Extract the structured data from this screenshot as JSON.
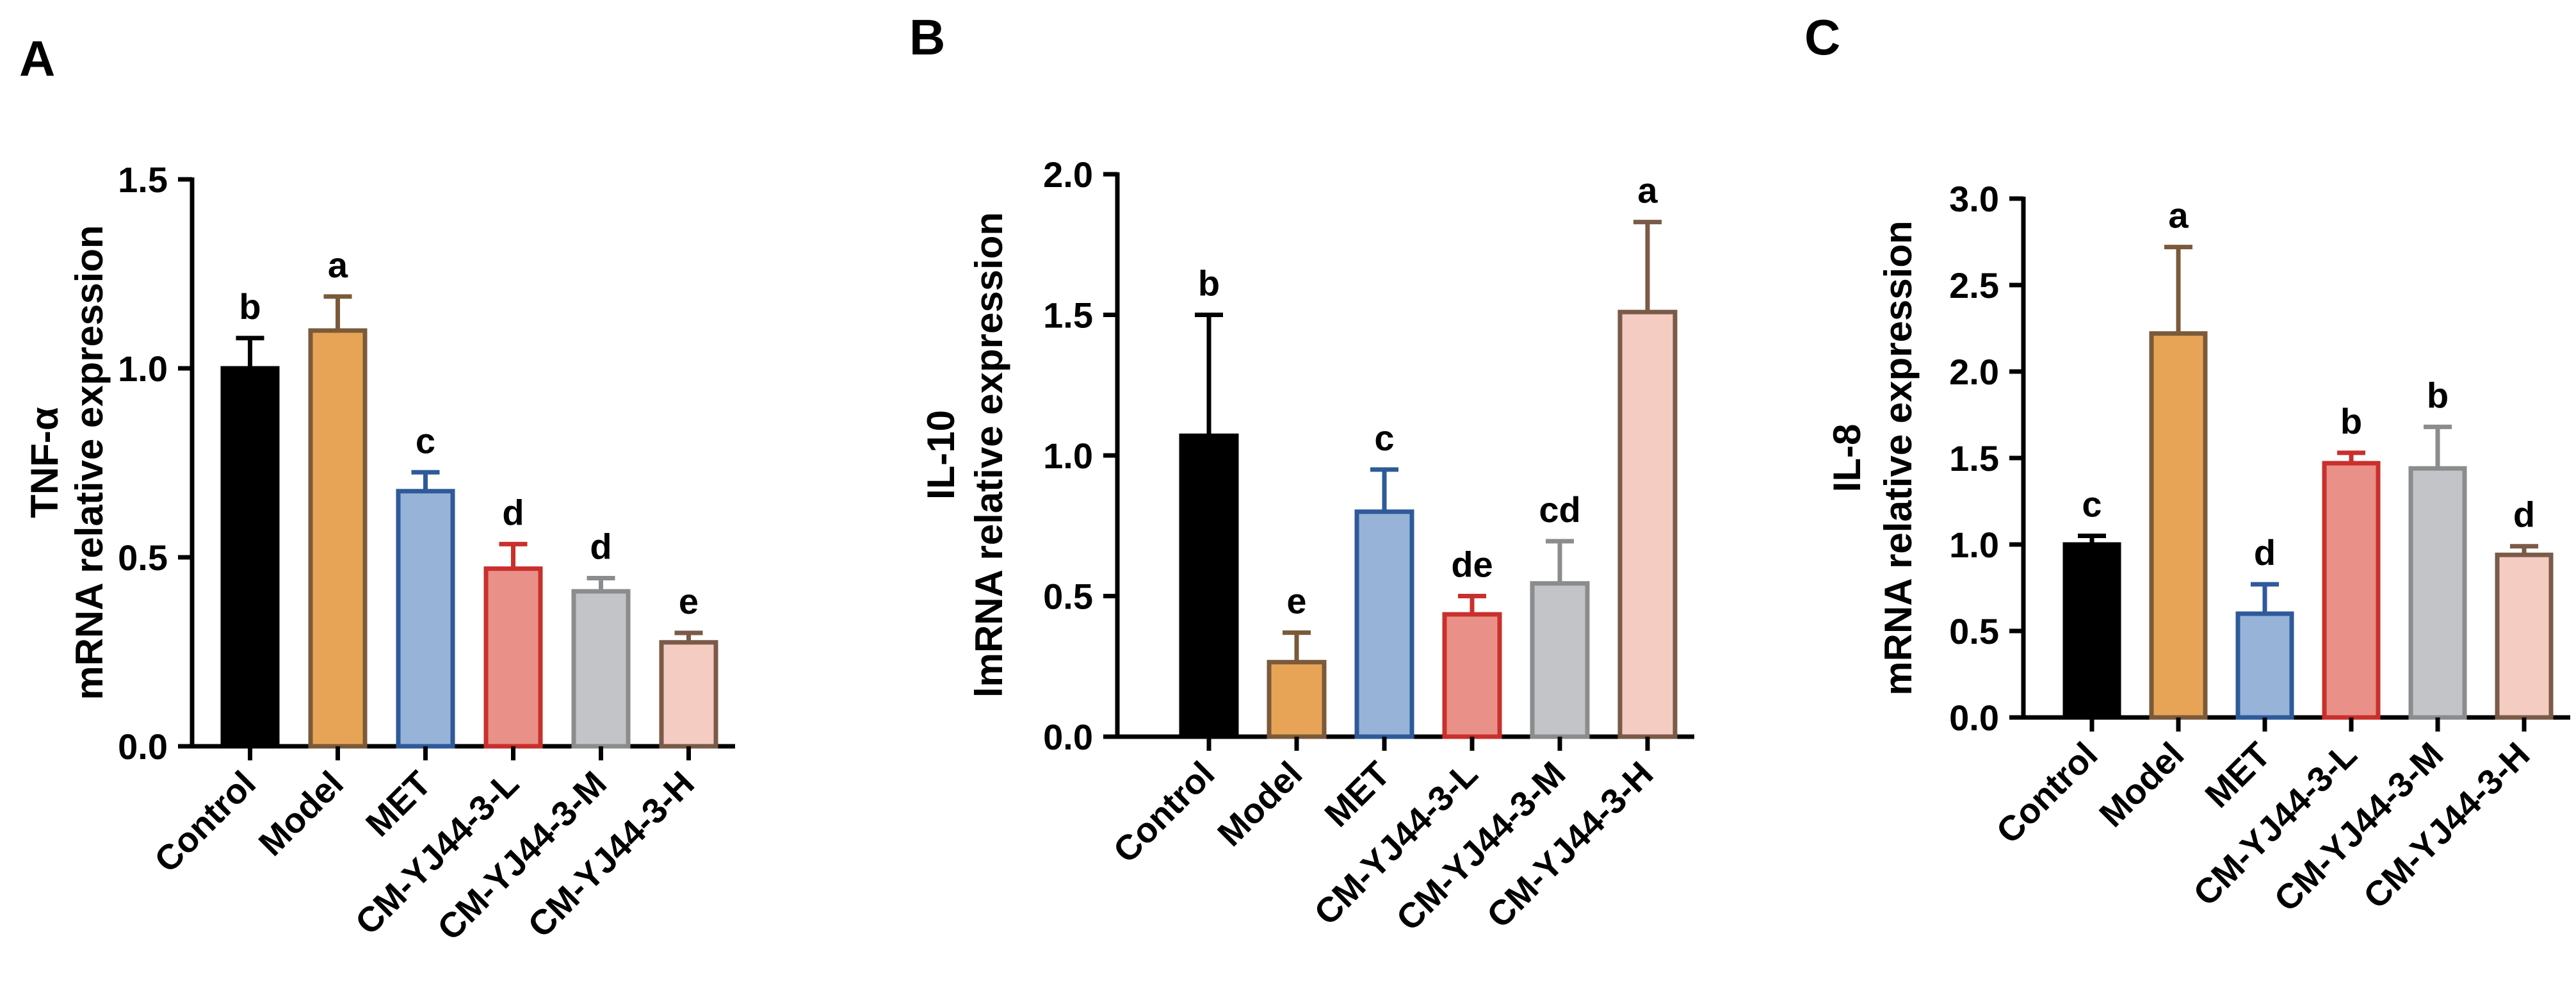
{
  "chart_data": [
    {
      "type": "bar",
      "panel": "A",
      "ylabel_line1": "TNF-α",
      "ylabel_line2": "mRNA relative expression",
      "categories": [
        "Control",
        "Model",
        "MET",
        "CM-YJ44-3-L",
        "CM-YJ44-3-M",
        "CM-YJ44-3-H"
      ],
      "values": [
        1.0,
        1.1,
        0.675,
        0.47,
        0.41,
        0.275
      ],
      "errors": [
        0.08,
        0.09,
        0.05,
        0.065,
        0.035,
        0.025
      ],
      "letters": [
        "b",
        "a",
        "c",
        "d",
        "d",
        "e"
      ],
      "ylim": [
        0,
        1.5
      ],
      "yticks": [
        0.0,
        0.5,
        1.0,
        1.5
      ],
      "ytick_labels": [
        "0.0",
        "0.5",
        "1.0",
        "1.5"
      ]
    },
    {
      "type": "bar",
      "panel": "B",
      "ylabel_line1": "IL-10",
      "ylabel_line2": "lmRNA relative expression",
      "categories": [
        "Control",
        "Model",
        "MET",
        "CM-YJ44-3-L",
        "CM-YJ44-3-M",
        "CM-YJ44-3-H"
      ],
      "values": [
        1.07,
        0.265,
        0.8,
        0.435,
        0.545,
        1.51
      ],
      "errors": [
        0.43,
        0.105,
        0.15,
        0.065,
        0.15,
        0.32
      ],
      "letters": [
        "b",
        "e",
        "c",
        "de",
        "cd",
        "a"
      ],
      "ylim": [
        0,
        2.0
      ],
      "yticks": [
        0.0,
        0.5,
        1.0,
        1.5,
        2.0
      ],
      "ytick_labels": [
        "0.0",
        "0.5",
        "1.0",
        "1.5",
        "2.0"
      ]
    },
    {
      "type": "bar",
      "panel": "C",
      "ylabel_line1": "IL-8",
      "ylabel_line2": "mRNA relative expression",
      "categories": [
        "Control",
        "Model",
        "MET",
        "CM-YJ44-3-L",
        "CM-YJ44-3-M",
        "CM-YJ44-3-H"
      ],
      "values": [
        1.0,
        2.22,
        0.6,
        1.47,
        1.44,
        0.94
      ],
      "errors": [
        0.05,
        0.5,
        0.17,
        0.06,
        0.24,
        0.05
      ],
      "letters": [
        "c",
        "a",
        "d",
        "b",
        "b",
        "d"
      ],
      "ylim": [
        0,
        3.0
      ],
      "yticks": [
        0.0,
        0.5,
        1.0,
        1.5,
        2.0,
        2.5,
        3.0
      ],
      "ytick_labels": [
        "0.0",
        "0.5",
        "1.0",
        "1.5",
        "2.0",
        "2.5",
        "3.0"
      ]
    }
  ],
  "colors": {
    "fills": [
      "#000000",
      "#E8A456",
      "#97B3D8",
      "#E99089",
      "#C2C4C7",
      "#F4CCC2"
    ],
    "strokes": [
      "#000000",
      "#7A5A3A",
      "#2E5A9A",
      "#C9302C",
      "#8A8C8E",
      "#7A5A48"
    ]
  }
}
